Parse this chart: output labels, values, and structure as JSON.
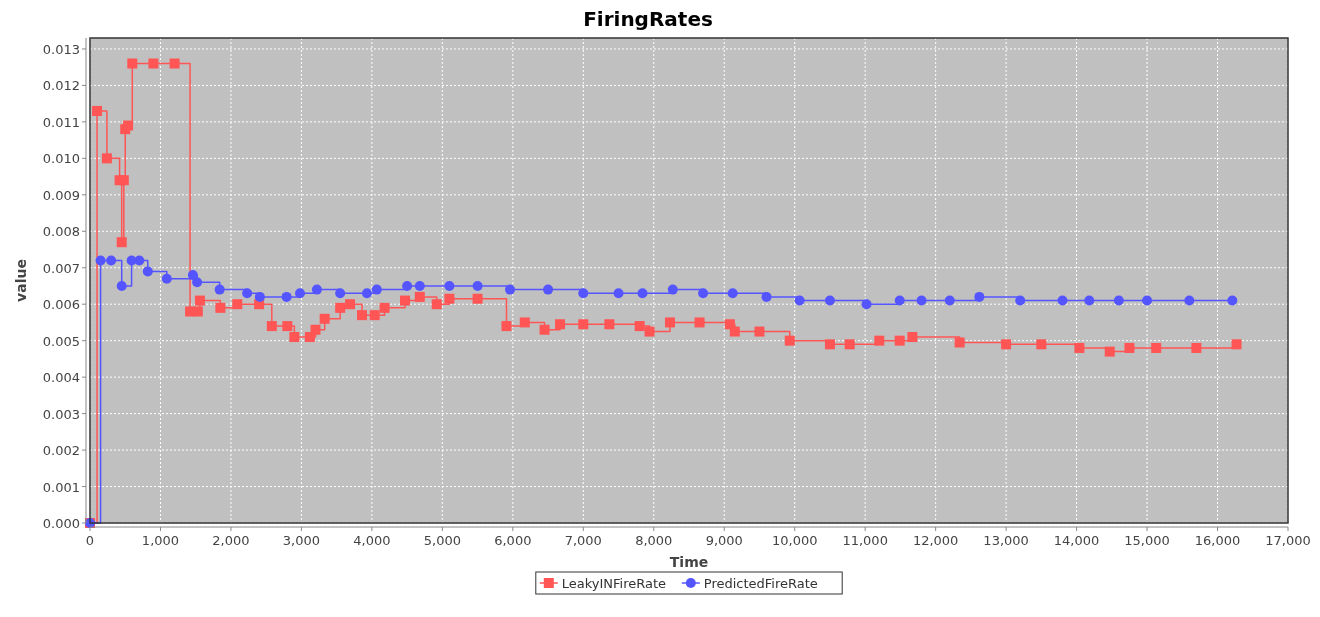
{
  "chart_data": {
    "type": "step",
    "title": "FiringRates",
    "xlabel": "Time",
    "ylabel": "value",
    "xlim": [
      0,
      17000
    ],
    "ylim": [
      0,
      0.0133
    ],
    "xticks": [
      {
        "value": 0,
        "label": "0"
      },
      {
        "value": 1000,
        "label": "1,000"
      },
      {
        "value": 2000,
        "label": "2,000"
      },
      {
        "value": 3000,
        "label": "3,000"
      },
      {
        "value": 4000,
        "label": "4,000"
      },
      {
        "value": 5000,
        "label": "5,000"
      },
      {
        "value": 6000,
        "label": "6,000"
      },
      {
        "value": 7000,
        "label": "7,000"
      },
      {
        "value": 8000,
        "label": "8,000"
      },
      {
        "value": 9000,
        "label": "9,000"
      },
      {
        "value": 10000,
        "label": "10,000"
      },
      {
        "value": 11000,
        "label": "11,000"
      },
      {
        "value": 12000,
        "label": "12,000"
      },
      {
        "value": 13000,
        "label": "13,000"
      },
      {
        "value": 14000,
        "label": "14,000"
      },
      {
        "value": 15000,
        "label": "15,000"
      },
      {
        "value": 16000,
        "label": "16,000"
      },
      {
        "value": 17000,
        "label": "17,000"
      }
    ],
    "yticks": [
      {
        "value": 0,
        "label": "0.000"
      },
      {
        "value": 0.001,
        "label": "0.001"
      },
      {
        "value": 0.002,
        "label": "0.002"
      },
      {
        "value": 0.003,
        "label": "0.003"
      },
      {
        "value": 0.004,
        "label": "0.004"
      },
      {
        "value": 0.005,
        "label": "0.005"
      },
      {
        "value": 0.006,
        "label": "0.006"
      },
      {
        "value": 0.007,
        "label": "0.007"
      },
      {
        "value": 0.008,
        "label": "0.008"
      },
      {
        "value": 0.009,
        "label": "0.009"
      },
      {
        "value": 0.01,
        "label": "0.010"
      },
      {
        "value": 0.011,
        "label": "0.011"
      },
      {
        "value": 0.012,
        "label": "0.012"
      },
      {
        "value": 0.013,
        "label": "0.013"
      }
    ],
    "grid": true,
    "legend": "bottom",
    "series": [
      {
        "name": "LeakyINFireRate",
        "color": "#ff5555",
        "marker": "square",
        "x": [
          0,
          100,
          240,
          420,
          450,
          480,
          500,
          540,
          600,
          900,
          1200,
          1420,
          1530,
          1560,
          1850,
          2090,
          2400,
          2580,
          2800,
          2900,
          3120,
          3200,
          3330,
          3550,
          3690,
          3860,
          4040,
          4180,
          4470,
          4680,
          4920,
          5100,
          5500,
          5910,
          6170,
          6450,
          6670,
          7000,
          7370,
          7800,
          7940,
          8230,
          8650,
          9080,
          9150,
          9500,
          9930,
          10500,
          10780,
          11200,
          11490,
          11670,
          12340,
          13000,
          13500,
          14040,
          14470,
          14750,
          15130,
          15700,
          16270
        ],
        "values": [
          0,
          0.0113,
          0.01,
          0.0094,
          0.0077,
          0.0094,
          0.0108,
          0.0109,
          0.0126,
          0.0126,
          0.0126,
          0.0058,
          0.0058,
          0.0061,
          0.0059,
          0.006,
          0.006,
          0.0054,
          0.0054,
          0.0051,
          0.0051,
          0.0053,
          0.0056,
          0.0059,
          0.006,
          0.0057,
          0.0057,
          0.0059,
          0.0061,
          0.0062,
          0.006,
          0.00615,
          0.00615,
          0.0054,
          0.0055,
          0.0053,
          0.00545,
          0.00545,
          0.00545,
          0.0054,
          0.00525,
          0.0055,
          0.0055,
          0.00545,
          0.00525,
          0.00525,
          0.005,
          0.0049,
          0.0049,
          0.005,
          0.005,
          0.0051,
          0.00495,
          0.0049,
          0.0049,
          0.0048,
          0.0047,
          0.0048,
          0.0048,
          0.0048,
          0.0049
        ]
      },
      {
        "name": "PredictedFireRate",
        "color": "#5555ff",
        "marker": "circle",
        "x": [
          0,
          150,
          300,
          450,
          590,
          700,
          820,
          1090,
          1460,
          1520,
          1840,
          2230,
          2410,
          2790,
          2980,
          3220,
          3550,
          3930,
          4070,
          4500,
          4680,
          5100,
          5500,
          5960,
          6500,
          7000,
          7500,
          7840,
          8270,
          8700,
          9120,
          9600,
          10070,
          10500,
          11020,
          11490,
          11800,
          12200,
          12620,
          13200,
          13800,
          14180,
          14600,
          15000,
          15600,
          16210
        ],
        "values": [
          0,
          0.0072,
          0.0072,
          0.0065,
          0.0072,
          0.0072,
          0.0069,
          0.0067,
          0.0068,
          0.0066,
          0.0064,
          0.0063,
          0.0062,
          0.0062,
          0.0063,
          0.0064,
          0.0063,
          0.0063,
          0.0064,
          0.0065,
          0.0065,
          0.0065,
          0.0065,
          0.0064,
          0.0064,
          0.0063,
          0.0063,
          0.0063,
          0.0064,
          0.0063,
          0.0063,
          0.0062,
          0.0061,
          0.0061,
          0.006,
          0.0061,
          0.0061,
          0.0061,
          0.0062,
          0.0061,
          0.0061,
          0.0061,
          0.0061,
          0.0061,
          0.0061,
          0.0061
        ]
      }
    ]
  }
}
